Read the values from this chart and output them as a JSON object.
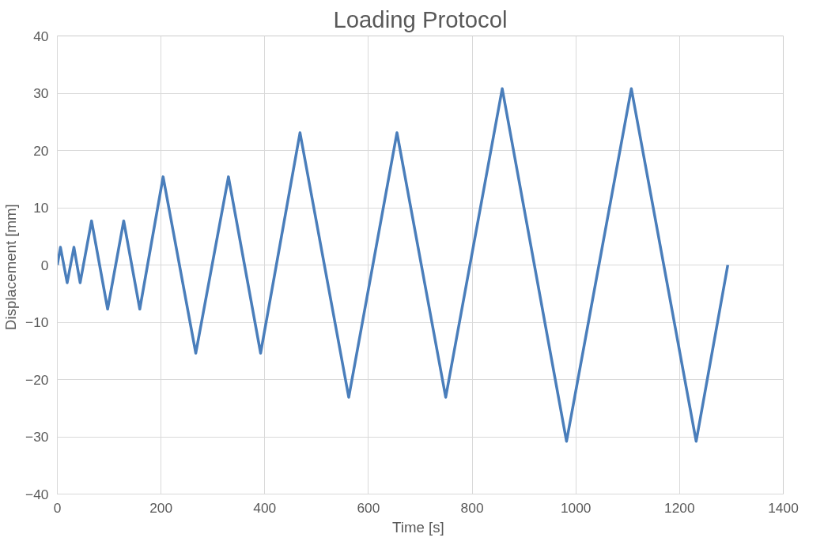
{
  "chart_data": {
    "type": "line",
    "title": "Loading Protocol",
    "xlabel": "Time  [s]",
    "ylabel": "Displacement  [mm]",
    "x": [
      0,
      6,
      19,
      32,
      44,
      66,
      97,
      128,
      159,
      204,
      267,
      330,
      392,
      468,
      562,
      655,
      749,
      858,
      982,
      1107,
      1232,
      1293
    ],
    "series": [
      {
        "color": "#4a7ebb",
        "values": [
          0,
          3.1,
          -3.1,
          3.1,
          -3.1,
          7.7,
          -7.7,
          7.7,
          -7.7,
          15.4,
          -15.4,
          15.4,
          -15.4,
          23.1,
          -23.1,
          23.1,
          -23.1,
          30.8,
          -30.8,
          30.8,
          -30.8,
          0
        ]
      }
    ],
    "xlim": [
      0,
      1400
    ],
    "xticks": [
      0,
      200,
      400,
      600,
      800,
      1000,
      1200,
      1400
    ],
    "ylim": [
      -40,
      40
    ],
    "yticks": [
      -40,
      -30,
      -20,
      -10,
      0,
      10,
      20,
      30,
      40
    ],
    "grid": true,
    "marker": "none",
    "line_style": "solid"
  }
}
